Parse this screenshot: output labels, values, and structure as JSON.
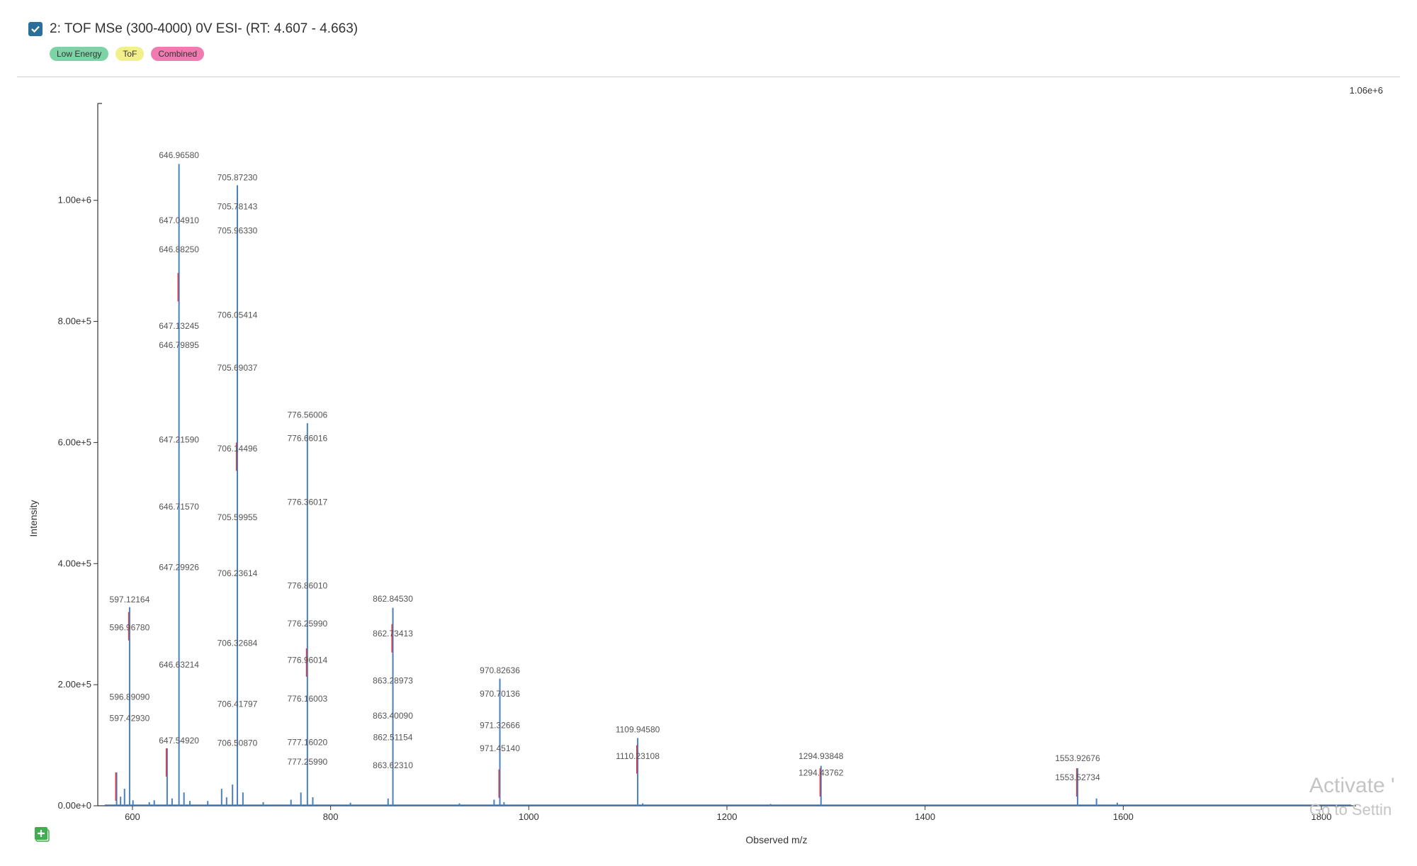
{
  "header": {
    "checked": true,
    "title": "2: TOF MSe (300-4000) 0V ESI- (RT: 4.607 - 4.663)",
    "badges": [
      {
        "label": "Low Energy",
        "color": "#7dd3a6"
      },
      {
        "label": "ToF",
        "color": "#f2f08a"
      },
      {
        "label": "Combined",
        "color": "#f07bb0"
      }
    ]
  },
  "max_intensity_label": "1.06e+6",
  "watermark": {
    "line1": "Activate '",
    "line2": "Go to Settin"
  },
  "colors": {
    "spectrum": "#4a7fc0",
    "highlight": "#d23c4a",
    "axis": "#333333"
  },
  "icons": {
    "add": "add-plot-icon",
    "checkbox": "checkbox-checked-icon"
  },
  "chart_data": {
    "type": "line",
    "xlabel": "Observed m/z",
    "ylabel": "Intensity",
    "xlim": [
      565,
      1835
    ],
    "ylim": [
      0,
      1160000
    ],
    "xticks": [
      {
        "value": 600,
        "label": "600"
      },
      {
        "value": 800,
        "label": "800"
      },
      {
        "value": 1000,
        "label": "1000"
      },
      {
        "value": 1200,
        "label": "1200"
      },
      {
        "value": 1400,
        "label": "1400"
      },
      {
        "value": 1600,
        "label": "1600"
      },
      {
        "value": 1800,
        "label": "1800"
      }
    ],
    "yticks": [
      {
        "value": 0,
        "label": "0.00e+0"
      },
      {
        "value": 200000,
        "label": "2.00e+5"
      },
      {
        "value": 400000,
        "label": "4.00e+5"
      },
      {
        "value": 600000,
        "label": "6.00e+5"
      },
      {
        "value": 800000,
        "label": "8.00e+5"
      },
      {
        "value": 1000000,
        "label": "1.00e+6"
      }
    ],
    "peaks": [
      {
        "mz": 584.0,
        "intensity": 55000
      },
      {
        "mz": 588.0,
        "intensity": 15000
      },
      {
        "mz": 592.0,
        "intensity": 28000
      },
      {
        "mz": 597.12,
        "intensity": 328000
      },
      {
        "mz": 600.5,
        "intensity": 9000
      },
      {
        "mz": 617.0,
        "intensity": 6000
      },
      {
        "mz": 622.0,
        "intensity": 9000
      },
      {
        "mz": 635.0,
        "intensity": 95000
      },
      {
        "mz": 640.0,
        "intensity": 12000
      },
      {
        "mz": 646.97,
        "intensity": 1060000
      },
      {
        "mz": 652.0,
        "intensity": 22000
      },
      {
        "mz": 658.0,
        "intensity": 8000
      },
      {
        "mz": 676.0,
        "intensity": 8000
      },
      {
        "mz": 690.0,
        "intensity": 28000
      },
      {
        "mz": 695.0,
        "intensity": 14000
      },
      {
        "mz": 701.0,
        "intensity": 35000
      },
      {
        "mz": 705.87,
        "intensity": 1025000
      },
      {
        "mz": 711.5,
        "intensity": 22000
      },
      {
        "mz": 732.0,
        "intensity": 6000
      },
      {
        "mz": 760.0,
        "intensity": 10000
      },
      {
        "mz": 770.0,
        "intensity": 22000
      },
      {
        "mz": 776.56,
        "intensity": 632000
      },
      {
        "mz": 782.0,
        "intensity": 14000
      },
      {
        "mz": 820.0,
        "intensity": 5000
      },
      {
        "mz": 858.0,
        "intensity": 12000
      },
      {
        "mz": 862.85,
        "intensity": 327000
      },
      {
        "mz": 930.0,
        "intensity": 4000
      },
      {
        "mz": 965.0,
        "intensity": 10000
      },
      {
        "mz": 970.83,
        "intensity": 210000
      },
      {
        "mz": 975.0,
        "intensity": 6000
      },
      {
        "mz": 1109.95,
        "intensity": 112000
      },
      {
        "mz": 1115.0,
        "intensity": 4000
      },
      {
        "mz": 1244.0,
        "intensity": 3000
      },
      {
        "mz": 1294.94,
        "intensity": 66000
      },
      {
        "mz": 1553.93,
        "intensity": 62000
      },
      {
        "mz": 1573.0,
        "intensity": 12000
      },
      {
        "mz": 1594.0,
        "intensity": 5000
      }
    ],
    "highlight_peaks": [
      {
        "mz": 584.0,
        "intensity": 55000
      },
      {
        "mz": 597.1,
        "intensity": 320000
      },
      {
        "mz": 635.0,
        "intensity": 95000
      },
      {
        "mz": 646.9,
        "intensity": 880000
      },
      {
        "mz": 705.8,
        "intensity": 600000
      },
      {
        "mz": 776.5,
        "intensity": 260000
      },
      {
        "mz": 862.8,
        "intensity": 300000
      },
      {
        "mz": 970.8,
        "intensity": 60000
      },
      {
        "mz": 1109.9,
        "intensity": 100000
      },
      {
        "mz": 1294.9,
        "intensity": 62000
      },
      {
        "mz": 1553.9,
        "intensity": 62000
      }
    ],
    "annotations": [
      {
        "text": "646.96580",
        "mz": 646.97,
        "intensity": 1070000
      },
      {
        "text": "647.04910",
        "mz": 646.97,
        "intensity": 962000
      },
      {
        "text": "646.88250",
        "mz": 646.97,
        "intensity": 914000
      },
      {
        "text": "647.13245",
        "mz": 646.97,
        "intensity": 788000
      },
      {
        "text": "646.79895",
        "mz": 646.97,
        "intensity": 756000
      },
      {
        "text": "647.21590",
        "mz": 646.97,
        "intensity": 600000
      },
      {
        "text": "646.71570",
        "mz": 646.97,
        "intensity": 489000
      },
      {
        "text": "647.29926",
        "mz": 646.97,
        "intensity": 389000
      },
      {
        "text": "646.63214",
        "mz": 646.97,
        "intensity": 228000
      },
      {
        "text": "647.54920",
        "mz": 646.97,
        "intensity": 103000
      },
      {
        "text": "705.87230",
        "mz": 705.87,
        "intensity": 1033000
      },
      {
        "text": "705.78143",
        "mz": 705.87,
        "intensity": 985000
      },
      {
        "text": "705.96330",
        "mz": 705.87,
        "intensity": 945000
      },
      {
        "text": "706.05414",
        "mz": 705.87,
        "intensity": 806000
      },
      {
        "text": "705.69037",
        "mz": 705.87,
        "intensity": 719000
      },
      {
        "text": "706.14496",
        "mz": 705.87,
        "intensity": 585000
      },
      {
        "text": "705.59955",
        "mz": 705.87,
        "intensity": 472000
      },
      {
        "text": "706.23614",
        "mz": 705.87,
        "intensity": 379000
      },
      {
        "text": "706.32684",
        "mz": 705.87,
        "intensity": 264000
      },
      {
        "text": "706.41797",
        "mz": 705.87,
        "intensity": 163000
      },
      {
        "text": "706.50870",
        "mz": 705.87,
        "intensity": 99000
      },
      {
        "text": "776.56006",
        "mz": 776.56,
        "intensity": 641000
      },
      {
        "text": "776.66016",
        "mz": 776.56,
        "intensity": 602000
      },
      {
        "text": "776.36017",
        "mz": 776.56,
        "intensity": 497000
      },
      {
        "text": "776.86010",
        "mz": 776.56,
        "intensity": 359000
      },
      {
        "text": "776.25990",
        "mz": 776.56,
        "intensity": 296000
      },
      {
        "text": "776.96014",
        "mz": 776.56,
        "intensity": 236000
      },
      {
        "text": "776.16003",
        "mz": 776.56,
        "intensity": 172000
      },
      {
        "text": "777.16020",
        "mz": 776.56,
        "intensity": 100000
      },
      {
        "text": "777.25990",
        "mz": 776.56,
        "intensity": 68000
      },
      {
        "text": "862.84530",
        "mz": 862.85,
        "intensity": 337000
      },
      {
        "text": "862.73413",
        "mz": 862.85,
        "intensity": 280000
      },
      {
        "text": "863.28973",
        "mz": 862.85,
        "intensity": 202000
      },
      {
        "text": "863.40090",
        "mz": 862.85,
        "intensity": 144000
      },
      {
        "text": "862.51154",
        "mz": 862.85,
        "intensity": 108000
      },
      {
        "text": "863.62310",
        "mz": 862.85,
        "intensity": 62000
      },
      {
        "text": "597.12164",
        "mz": 597.12,
        "intensity": 336000
      },
      {
        "text": "596.96780",
        "mz": 597.12,
        "intensity": 290000
      },
      {
        "text": "596.89090",
        "mz": 597.12,
        "intensity": 175000
      },
      {
        "text": "597.42930",
        "mz": 597.12,
        "intensity": 140000
      },
      {
        "text": "970.82636",
        "mz": 970.83,
        "intensity": 219000
      },
      {
        "text": "970.70136",
        "mz": 970.83,
        "intensity": 180000
      },
      {
        "text": "971.32666",
        "mz": 970.83,
        "intensity": 128000
      },
      {
        "text": "971.45140",
        "mz": 970.83,
        "intensity": 90000
      },
      {
        "text": "1109.94580",
        "mz": 1109.95,
        "intensity": 121000
      },
      {
        "text": "1110.23108",
        "mz": 1109.95,
        "intensity": 77000
      },
      {
        "text": "1294.93848",
        "mz": 1294.94,
        "intensity": 77000
      },
      {
        "text": "1294.43762",
        "mz": 1294.94,
        "intensity": 50000
      },
      {
        "text": "1553.92676",
        "mz": 1553.93,
        "intensity": 74000
      },
      {
        "text": "1553.52734",
        "mz": 1553.93,
        "intensity": 42000
      }
    ]
  }
}
